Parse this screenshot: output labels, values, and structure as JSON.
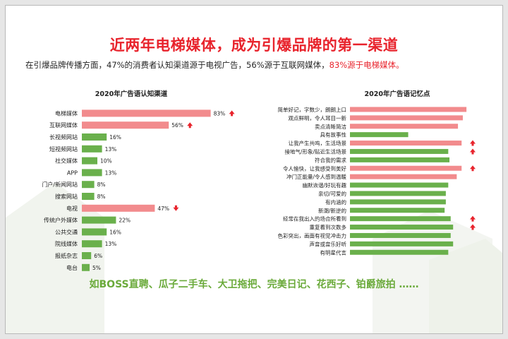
{
  "title": "近两年电梯媒体，成为引爆品牌的第一渠道",
  "subtitle": {
    "plain": "在引爆品牌传播方面，47%的消费者认知渠道源于电视广告，56%源于互联网媒体，",
    "highlight": "83%源于电梯媒体。"
  },
  "bottom_text": "如BOSS直聘、瓜子二手车、大卫拖把、完美日记、花西子、铂爵旅拍 ……",
  "colors": {
    "highlight": "#f28b8d",
    "normal": "#6ab04c",
    "arrow": "#e8232c",
    "title": "#e8232c"
  },
  "chart_data": [
    {
      "type": "bar",
      "orientation": "horizontal",
      "title": "2020年广告语认知渠道",
      "categories": [
        "电梯媒体",
        "互联网媒体",
        "长视频网站",
        "短视频网站",
        "社交媒体",
        "APP",
        "门户/新闻网站",
        "搜索网站",
        "电视",
        "传统户外媒体",
        "公共交通",
        "院线媒体",
        "报纸杂志",
        "电台"
      ],
      "values": [
        83,
        56,
        16,
        13,
        10,
        13,
        8,
        8,
        47,
        22,
        16,
        13,
        6,
        5
      ],
      "value_labels": [
        "83%",
        "56%",
        "16%",
        "13%",
        "10%",
        "13%",
        "8%",
        "8%",
        "47%",
        "22%",
        "16%",
        "13%",
        "6%",
        "5%"
      ],
      "highlighted": [
        true,
        true,
        false,
        false,
        false,
        false,
        false,
        false,
        true,
        false,
        false,
        false,
        false,
        false
      ],
      "arrows": [
        "up",
        "up",
        null,
        null,
        null,
        null,
        null,
        null,
        "down",
        null,
        null,
        null,
        null,
        null
      ],
      "xlim": [
        0,
        100
      ]
    },
    {
      "type": "bar",
      "orientation": "horizontal",
      "title": "2020年广告语记忆点",
      "categories": [
        "简单好记，字数少，朗朗上口",
        "观点鲜明，令人耳目一新",
        "卖点清晰简洁",
        "具有故事性",
        "让我产生共鸣，生活场景",
        "接地气/形象/贴近生活场景",
        "符合我的需求",
        "令人愉快，让我感受到美好",
        "冲门正能量/令人感到温暖",
        "幽默诙谐/好玩有趣",
        "亲切/可爱的",
        "有内涵的",
        "新潮/新逆的",
        "经常在我出入的场合所看到",
        "重复看到次数多",
        "色彩突出，画面有视觉冲击力",
        "声音或音乐好听",
        "有明星代言"
      ],
      "values": [
        96,
        93,
        89,
        48,
        92,
        81,
        82,
        92,
        88,
        81,
        79,
        79,
        78,
        83,
        85,
        83,
        85,
        81
      ],
      "highlighted": [
        true,
        true,
        true,
        false,
        true,
        false,
        false,
        true,
        true,
        false,
        false,
        false,
        false,
        false,
        false,
        false,
        false,
        false
      ],
      "arrows": [
        null,
        null,
        null,
        null,
        "up",
        "up",
        null,
        "up",
        null,
        null,
        null,
        null,
        null,
        "up",
        "up",
        null,
        null,
        null
      ],
      "xlim": [
        0,
        100
      ]
    }
  ]
}
